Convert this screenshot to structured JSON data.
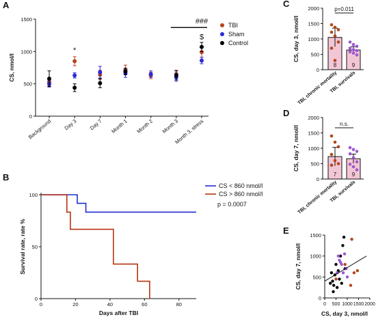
{
  "colors": {
    "tbi": "#b5451b",
    "sham": "#2b2bd9",
    "control": "#000000",
    "survival": "#9b59d0",
    "chronic": "#b5451b",
    "bar_pink": "#f3c6d6",
    "blue_line": "#1f2bd0",
    "red_line": "#b8320f"
  },
  "chart_data": [
    {
      "id": "A",
      "panel": "A",
      "type": "scatter",
      "ylabel": "CS, nmol/l",
      "ylim": [
        0,
        1500
      ],
      "yticks": [
        0,
        500,
        1000,
        1500
      ],
      "categories": [
        "Background",
        "Day 3",
        "Day 7",
        "Month 1",
        "Month 2",
        "Month 3",
        "Month 3, stress"
      ],
      "series": [
        {
          "name": "TBI",
          "color_key": "tbi",
          "values": [
            530,
            850,
            640,
            720,
            630,
            650,
            990
          ],
          "err": [
            60,
            70,
            70,
            70,
            50,
            60,
            80
          ]
        },
        {
          "name": "Sham",
          "color_key": "sham",
          "values": [
            500,
            630,
            680,
            660,
            650,
            600,
            860
          ],
          "err": [
            50,
            40,
            90,
            60,
            50,
            60,
            50
          ]
        },
        {
          "name": "Control",
          "color_key": "control",
          "values": [
            580,
            440,
            510,
            690,
            null,
            630,
            1070
          ],
          "err": [
            120,
            60,
            70,
            50,
            null,
            70,
            70
          ]
        }
      ],
      "annotations": [
        {
          "text": "*",
          "category": "Day 3",
          "y": 980
        },
        {
          "text": "###",
          "category": "Month 3, stress",
          "y": 1430
        },
        {
          "text": "$",
          "category": "Month 3, stress",
          "y": 1190
        }
      ],
      "bracket": {
        "from": "Month 3",
        "to": "Month 3, stress",
        "y": 1370
      }
    },
    {
      "id": "B",
      "panel": "B",
      "type": "line",
      "xlabel": "Days after TBI",
      "ylabel": "Survival rate, rate %",
      "xlim": [
        0,
        90
      ],
      "ylim": [
        0,
        100
      ],
      "xticks": [
        0,
        20,
        40,
        60,
        80
      ],
      "yticks": [
        0,
        50,
        100
      ],
      "series": [
        {
          "name": "CS < 860 nmol/l",
          "color_key": "blue_line",
          "steps": [
            [
              0,
              100
            ],
            [
              21,
              100
            ],
            [
              21,
              91.7
            ],
            [
              26,
              91.7
            ],
            [
              26,
              83.3
            ],
            [
              90,
              83.3
            ]
          ]
        },
        {
          "name": "CS > 860 nmol/l",
          "color_key": "red_line",
          "steps": [
            [
              0,
              100
            ],
            [
              15,
              100
            ],
            [
              15,
              83.3
            ],
            [
              17,
              83.3
            ],
            [
              17,
              66.7
            ],
            [
              42,
              66.7
            ],
            [
              42,
              33.3
            ],
            [
              56,
              33.3
            ],
            [
              56,
              16.7
            ],
            [
              63,
              16.7
            ],
            [
              63,
              0
            ]
          ]
        }
      ],
      "pvalue": "p = 0.0007"
    },
    {
      "id": "C",
      "panel": "C",
      "type": "bar",
      "ylabel": "CS, day 3, nmol/l",
      "ylim": [
        0,
        2000
      ],
      "yticks": [
        0,
        500,
        1000,
        1500,
        2000
      ],
      "categories": [
        "TBI, chronic mortality",
        "TBI, survivals"
      ],
      "values": [
        1050,
        640
      ],
      "err": [
        300,
        110
      ],
      "n": [
        "8",
        "9"
      ],
      "points": [
        [
          1460,
          1380,
          1300,
          1220,
          1100,
          900,
          700,
          300
        ],
        [
          900,
          820,
          760,
          700,
          650,
          620,
          580,
          540,
          480
        ]
      ],
      "significance": "p=0.011"
    },
    {
      "id": "D",
      "panel": "D",
      "type": "bar",
      "ylabel": "CS, day 7, nmol/l",
      "ylim": [
        0,
        2000
      ],
      "yticks": [
        0,
        500,
        1000,
        1500,
        2000
      ],
      "categories": [
        "TBI, chronic mortality",
        "TBI, survivals"
      ],
      "values": [
        730,
        660
      ],
      "err": [
        300,
        150
      ],
      "n": [
        "7",
        "9"
      ],
      "points": [
        [
          1400,
          1200,
          1050,
          800,
          600,
          500,
          450
        ],
        [
          1020,
          960,
          900,
          820,
          700,
          560,
          480,
          400,
          300
        ]
      ],
      "significance": "n.s."
    },
    {
      "id": "E",
      "panel": "E",
      "type": "scatter",
      "xlabel": "CS, day 3, nmol/l",
      "ylabel": "CS, day 7, nmol/l",
      "xlim": [
        0,
        2000
      ],
      "ylim": [
        0,
        1500
      ],
      "xticks": [
        0,
        500,
        1000,
        1500,
        2000
      ],
      "yticks": [
        0,
        500,
        1000,
        1500
      ],
      "points": [
        {
          "x": 300,
          "y": 600,
          "c": "control"
        },
        {
          "x": 350,
          "y": 400,
          "c": "control"
        },
        {
          "x": 400,
          "y": 300,
          "c": "control"
        },
        {
          "x": 450,
          "y": 550,
          "c": "control"
        },
        {
          "x": 500,
          "y": 800,
          "c": "control"
        },
        {
          "x": 550,
          "y": 250,
          "c": "control"
        },
        {
          "x": 600,
          "y": 650,
          "c": "control"
        },
        {
          "x": 650,
          "y": 450,
          "c": "control"
        },
        {
          "x": 700,
          "y": 1000,
          "c": "control"
        },
        {
          "x": 750,
          "y": 350,
          "c": "control"
        },
        {
          "x": 800,
          "y": 1250,
          "c": "control"
        },
        {
          "x": 850,
          "y": 1450,
          "c": "control"
        },
        {
          "x": 900,
          "y": 700,
          "c": "control"
        },
        {
          "x": 380,
          "y": 150,
          "c": "control"
        },
        {
          "x": 250,
          "y": 350,
          "c": "control"
        },
        {
          "x": 550,
          "y": 600,
          "c": "survival"
        },
        {
          "x": 600,
          "y": 1000,
          "c": "survival"
        },
        {
          "x": 650,
          "y": 900,
          "c": "survival"
        },
        {
          "x": 700,
          "y": 850,
          "c": "survival"
        },
        {
          "x": 750,
          "y": 800,
          "c": "survival"
        },
        {
          "x": 820,
          "y": 600,
          "c": "survival"
        },
        {
          "x": 880,
          "y": 1050,
          "c": "survival"
        },
        {
          "x": 950,
          "y": 700,
          "c": "survival"
        },
        {
          "x": 1000,
          "y": 500,
          "c": "survival"
        },
        {
          "x": 1200,
          "y": 1400,
          "c": "chronic"
        },
        {
          "x": 1300,
          "y": 600,
          "c": "chronic"
        },
        {
          "x": 1450,
          "y": 650,
          "c": "chronic"
        },
        {
          "x": 1150,
          "y": 300,
          "c": "chronic"
        },
        {
          "x": 500,
          "y": 450,
          "c": "chronic"
        },
        {
          "x": 900,
          "y": 800,
          "c": "chronic"
        }
      ],
      "trend": [
        [
          0,
          400
        ],
        [
          1850,
          1000
        ]
      ]
    }
  ]
}
